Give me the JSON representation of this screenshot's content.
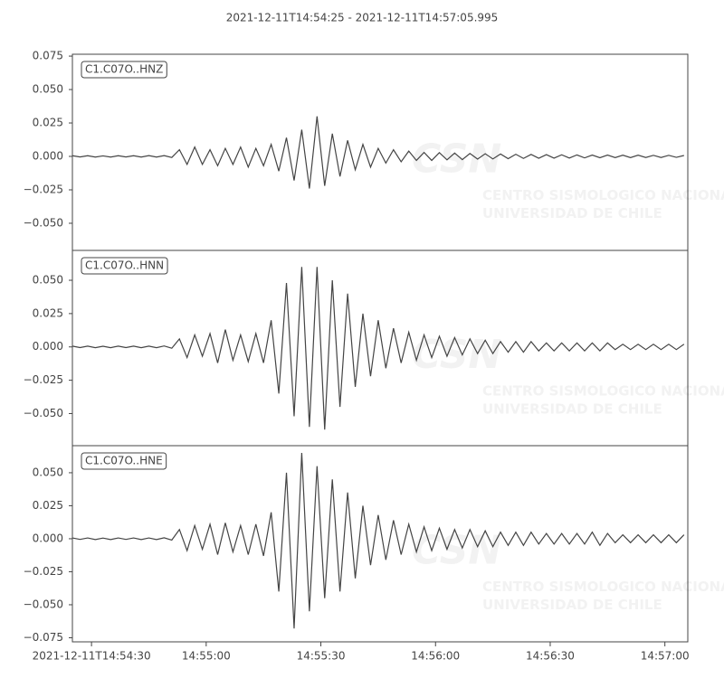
{
  "chart_data": {
    "type": "line",
    "title": "2021-12-11T14:54:25  -  2021-12-11T14:57:05.995",
    "watermark": [
      "CSN",
      "CENTRO SISMOLOGICO NACIONAL",
      "UNIVERSIDAD DE CHILE"
    ],
    "xlim": [
      "2021-12-11T14:54:25",
      "2021-12-11T14:57:05.995"
    ],
    "xticks": [
      "2021-12-11T14:54:30",
      {
        "value": "2021-12-11T14:55:00",
        "label": "14:55:00"
      },
      {
        "value": "2021-12-11T14:55:30",
        "label": "14:55:30"
      },
      {
        "value": "2021-12-11T14:56:00",
        "label": "14:56:00"
      },
      {
        "value": "2021-12-11T14:56:30",
        "label": "14:56:30"
      },
      {
        "value": "2021-12-11T14:57:00",
        "label": "14:57:00"
      }
    ],
    "x": [
      "2021-12-11T14:54:25",
      "2021-12-11T14:54:27",
      "2021-12-11T14:54:29",
      "2021-12-11T14:54:31",
      "2021-12-11T14:54:33",
      "2021-12-11T14:54:35",
      "2021-12-11T14:54:37",
      "2021-12-11T14:54:39",
      "2021-12-11T14:54:41",
      "2021-12-11T14:54:43",
      "2021-12-11T14:54:45",
      "2021-12-11T14:54:47",
      "2021-12-11T14:54:49",
      "2021-12-11T14:54:51",
      "2021-12-11T14:54:53",
      "2021-12-11T14:54:55",
      "2021-12-11T14:54:57",
      "2021-12-11T14:54:59",
      "2021-12-11T14:55:01",
      "2021-12-11T14:55:03",
      "2021-12-11T14:55:05",
      "2021-12-11T14:55:07",
      "2021-12-11T14:55:09",
      "2021-12-11T14:55:11",
      "2021-12-11T14:55:13",
      "2021-12-11T14:55:15",
      "2021-12-11T14:55:17",
      "2021-12-11T14:55:19",
      "2021-12-11T14:55:21",
      "2021-12-11T14:55:23",
      "2021-12-11T14:55:25",
      "2021-12-11T14:55:27",
      "2021-12-11T14:55:29",
      "2021-12-11T14:55:31",
      "2021-12-11T14:55:33",
      "2021-12-11T14:55:35",
      "2021-12-11T14:55:37",
      "2021-12-11T14:55:39",
      "2021-12-11T14:55:41",
      "2021-12-11T14:55:43",
      "2021-12-11T14:55:45",
      "2021-12-11T14:55:47",
      "2021-12-11T14:55:49",
      "2021-12-11T14:55:51",
      "2021-12-11T14:55:53",
      "2021-12-11T14:55:55",
      "2021-12-11T14:55:57",
      "2021-12-11T14:55:59",
      "2021-12-11T14:56:01",
      "2021-12-11T14:56:03",
      "2021-12-11T14:56:05",
      "2021-12-11T14:56:07",
      "2021-12-11T14:56:09",
      "2021-12-11T14:56:11",
      "2021-12-11T14:56:13",
      "2021-12-11T14:56:15",
      "2021-12-11T14:56:17",
      "2021-12-11T14:56:19",
      "2021-12-11T14:56:21",
      "2021-12-11T14:56:23",
      "2021-12-11T14:56:25",
      "2021-12-11T14:56:27",
      "2021-12-11T14:56:29",
      "2021-12-11T14:56:31",
      "2021-12-11T14:56:33",
      "2021-12-11T14:56:35",
      "2021-12-11T14:56:37",
      "2021-12-11T14:56:39",
      "2021-12-11T14:56:41",
      "2021-12-11T14:56:43",
      "2021-12-11T14:56:45",
      "2021-12-11T14:56:47",
      "2021-12-11T14:56:49",
      "2021-12-11T14:56:51",
      "2021-12-11T14:56:53",
      "2021-12-11T14:56:55",
      "2021-12-11T14:56:57",
      "2021-12-11T14:56:59",
      "2021-12-11T14:57:01",
      "2021-12-11T14:57:03",
      "2021-12-11T14:57:05"
    ],
    "series": [
      {
        "name": "C1.C07O..HNZ",
        "color": "#444444",
        "ylim": [
          -0.0703,
          0.0764
        ],
        "yticks": [
          {
            "value": 0.075,
            "label": "0.075"
          },
          {
            "value": 0.05,
            "label": "0.050"
          },
          {
            "value": 0.025,
            "label": "0.025"
          },
          {
            "value": 0,
            "label": "0.000"
          },
          {
            "value": -0.025,
            "label": "−0.025"
          },
          {
            "value": -0.05,
            "label": "−0.050"
          }
        ],
        "values": [
          0.0005,
          -0.0004,
          0.0005,
          -0.0005,
          0.0004,
          -0.0005,
          0.0005,
          -0.0004,
          0.0005,
          -0.0005,
          0.0006,
          -0.0005,
          0.0006,
          -0.0008,
          0.005,
          -0.006,
          0.007,
          -0.006,
          0.005,
          -0.007,
          0.006,
          -0.006,
          0.007,
          -0.008,
          0.006,
          -0.007,
          0.009,
          -0.011,
          0.014,
          -0.018,
          0.02,
          -0.024,
          0.03,
          -0.022,
          0.017,
          -0.015,
          0.012,
          -0.01,
          0.009,
          -0.008,
          0.006,
          -0.005,
          0.005,
          -0.004,
          0.004,
          -0.003,
          0.003,
          -0.003,
          0.0028,
          -0.0026,
          0.0025,
          -0.0024,
          0.0022,
          -0.002,
          0.002,
          -0.0019,
          0.0018,
          -0.0017,
          0.0016,
          -0.0015,
          0.0015,
          -0.0014,
          0.0013,
          -0.0013,
          0.0012,
          -0.0012,
          0.0011,
          -0.0011,
          0.001,
          -0.001,
          0.001,
          -0.0009,
          0.0009,
          -0.0009,
          0.0009,
          -0.0008,
          0.0008,
          -0.0008,
          0.0008,
          -0.0007,
          0.0007
        ]
      },
      {
        "name": "C1.C07O..HNN",
        "color": "#444444",
        "ylim": [
          -0.0741,
          0.0724
        ],
        "yticks": [
          {
            "value": 0.05,
            "label": "0.050"
          },
          {
            "value": 0.025,
            "label": "0.025"
          },
          {
            "value": 0,
            "label": "0.000"
          },
          {
            "value": -0.025,
            "label": "−0.025"
          },
          {
            "value": -0.05,
            "label": "−0.050"
          }
        ],
        "values": [
          0.0006,
          -0.0005,
          0.0006,
          -0.0006,
          0.0005,
          -0.0006,
          0.0006,
          -0.0005,
          0.0006,
          -0.0006,
          0.0006,
          -0.0006,
          0.0007,
          -0.001,
          0.006,
          -0.008,
          0.009,
          -0.007,
          0.01,
          -0.012,
          0.013,
          -0.01,
          0.009,
          -0.011,
          0.01,
          -0.012,
          0.02,
          -0.035,
          0.048,
          -0.052,
          0.06,
          -0.06,
          0.06,
          -0.062,
          0.05,
          -0.045,
          0.04,
          -0.03,
          0.025,
          -0.022,
          0.02,
          -0.016,
          0.014,
          -0.012,
          0.011,
          -0.01,
          0.009,
          -0.008,
          0.008,
          -0.007,
          0.007,
          -0.006,
          0.006,
          -0.005,
          0.005,
          -0.005,
          0.004,
          -0.004,
          0.004,
          -0.004,
          0.004,
          -0.003,
          0.003,
          -0.003,
          0.003,
          -0.003,
          0.003,
          -0.003,
          0.003,
          -0.003,
          0.003,
          -0.002,
          0.002,
          -0.002,
          0.002,
          -0.002,
          0.002,
          -0.002,
          0.002,
          -0.002,
          0.002
        ]
      },
      {
        "name": "C1.C07O..HNE",
        "color": "#444444",
        "ylim": [
          -0.0781,
          0.0705
        ],
        "yticks": [
          {
            "value": 0.05,
            "label": "0.050"
          },
          {
            "value": 0.025,
            "label": "0.025"
          },
          {
            "value": 0,
            "label": "0.000"
          },
          {
            "value": -0.025,
            "label": "−0.025"
          },
          {
            "value": -0.05,
            "label": "−0.050"
          },
          {
            "value": -0.075,
            "label": "−0.075"
          }
        ],
        "values": [
          0.0006,
          -0.0005,
          0.0006,
          -0.0006,
          0.0005,
          -0.0006,
          0.0006,
          -0.0005,
          0.0006,
          -0.0006,
          0.0006,
          -0.0006,
          0.0007,
          -0.001,
          0.007,
          -0.009,
          0.01,
          -0.008,
          0.011,
          -0.012,
          0.012,
          -0.01,
          0.01,
          -0.012,
          0.011,
          -0.013,
          0.02,
          -0.04,
          0.05,
          -0.068,
          0.065,
          -0.055,
          0.055,
          -0.045,
          0.045,
          -0.04,
          0.035,
          -0.03,
          0.025,
          -0.02,
          0.018,
          -0.016,
          0.014,
          -0.012,
          0.011,
          -0.01,
          0.009,
          -0.009,
          0.008,
          -0.008,
          0.007,
          -0.007,
          0.007,
          -0.006,
          0.006,
          -0.006,
          0.005,
          -0.005,
          0.005,
          -0.005,
          0.005,
          -0.004,
          0.004,
          -0.004,
          0.004,
          -0.004,
          0.004,
          -0.004,
          0.005,
          -0.005,
          0.004,
          -0.003,
          0.003,
          -0.003,
          0.003,
          -0.003,
          0.003,
          -0.003,
          0.003,
          -0.003,
          0.003
        ]
      }
    ]
  }
}
